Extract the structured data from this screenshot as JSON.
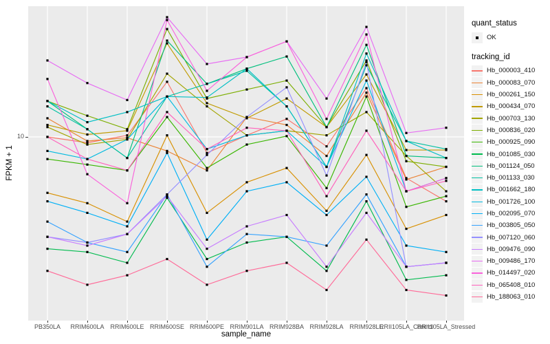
{
  "figure": {
    "background": "#FFFFFF",
    "panel_background": "#EBEBEB",
    "gridline_color": "#FFFFFF",
    "axis_text_color": "#4D4D4D",
    "marker_color": "#000000"
  },
  "chart_data": {
    "type": "line",
    "title": "",
    "xlabel": "sample_name",
    "ylabel": "FPKM + 1",
    "y_scale": "log10",
    "grid": "major gridlines, white on gray panel",
    "legend_position": "right",
    "y_ticks": [
      {
        "label": "10",
        "value": 10
      }
    ],
    "categories": [
      "PB350LA",
      "RRIM600LA",
      "RRIM600LE",
      "RRIM600SE",
      "RRIM600PE",
      "RRIM901LA",
      "RRIM928BA",
      "RRIM928LA",
      "RRIM928LE",
      "RRII105LA_Control",
      "RRII105LA_Stressed"
    ],
    "legend": {
      "quant_status_title": "quant_status",
      "quant_status_items": [
        {
          "label": "OK",
          "marker": "black-square-point"
        }
      ],
      "tracking_id_title": "tracking_id"
    },
    "marker": "small black square at every sample point (quant_status = OK)",
    "series": [
      {
        "name": "Hb_000003_410",
        "color": "#F8766D",
        "values": [
          10.0,
          9.3,
          10.2,
          19.8,
          8.2,
          10.2,
          12.5,
          8.9,
          18.3,
          6.0,
          4.5
        ]
      },
      {
        "name": "Hb_000083_070",
        "color": "#EB8335",
        "values": [
          12.6,
          9.5,
          9.9,
          8.4,
          6.6,
          12.8,
          11.6,
          7.9,
          17.3,
          5.9,
          6.9
        ]
      },
      {
        "name": "Hb_000261_150",
        "color": "#D89000",
        "values": [
          5.0,
          4.4,
          3.5,
          10.2,
          3.9,
          5.7,
          6.8,
          4.0,
          8.0,
          3.2,
          3.8
        ]
      },
      {
        "name": "Hb_000434_070",
        "color": "#C09B00",
        "values": [
          11.6,
          10.3,
          10.8,
          31.9,
          15.2,
          12.6,
          16.1,
          11.3,
          21.7,
          8.5,
          8.5
        ]
      },
      {
        "name": "Hb_000703_130",
        "color": "#A3A500",
        "values": [
          11.3,
          9.1,
          9.7,
          21.9,
          14.6,
          10.2,
          10.8,
          10.2,
          13.6,
          7.9,
          5.1
        ]
      },
      {
        "name": "Hb_000836_020",
        "color": "#7CAE00",
        "values": [
          15.6,
          13.0,
          11.0,
          38.1,
          16.1,
          18.0,
          20.1,
          11.3,
          25.8,
          7.4,
          6.9
        ]
      },
      {
        "name": "Hb_000925_090",
        "color": "#39B600",
        "values": [
          7.6,
          7.1,
          6.6,
          12.8,
          6.8,
          9.1,
          10.1,
          5.3,
          16.5,
          4.2,
          4.8
        ]
      },
      {
        "name": "Hb_001085_030",
        "color": "#00BB4E",
        "values": [
          2.5,
          2.4,
          2.1,
          4.7,
          2.2,
          2.7,
          2.9,
          1.9,
          4.5,
          1.7,
          1.8
        ]
      },
      {
        "name": "Hb_001124_050",
        "color": "#00BF7D",
        "values": [
          15.6,
          11.0,
          7.7,
          33.0,
          19.3,
          23.3,
          27.1,
          11.3,
          31.3,
          7.9,
          7.7
        ]
      },
      {
        "name": "Hb_001133_030",
        "color": "#00C1A3",
        "values": [
          14.6,
          11.0,
          7.7,
          16.5,
          19.3,
          22.7,
          14.6,
          6.9,
          24.3,
          9.5,
          8.6
        ]
      },
      {
        "name": "Hb_001662_180",
        "color": "#00BFC4",
        "values": [
          15.6,
          12.0,
          13.6,
          16.5,
          16.3,
          23.3,
          14.6,
          6.9,
          28.1,
          9.5,
          7.7
        ]
      },
      {
        "name": "Hb_001726_100",
        "color": "#00BAE0",
        "values": [
          8.4,
          7.6,
          9.7,
          16.5,
          8.6,
          10.2,
          10.8,
          6.9,
          20.1,
          5.1,
          6.0
        ]
      },
      {
        "name": "Hb_002095_070",
        "color": "#00B0F6",
        "values": [
          4.5,
          3.9,
          3.3,
          8.2,
          2.8,
          5.1,
          5.7,
          3.8,
          6.1,
          2.6,
          2.4
        ]
      },
      {
        "name": "Hb_003805_050",
        "color": "#35A2FF",
        "values": [
          3.5,
          2.7,
          2.4,
          4.9,
          2.0,
          3.0,
          2.9,
          2.6,
          4.9,
          2.0,
          2.1
        ]
      },
      {
        "name": "Hb_007120_060",
        "color": "#9590FF",
        "values": [
          2.9,
          2.7,
          3.0,
          4.9,
          8.0,
          12.8,
          18.5,
          6.2,
          25.3,
          2.0,
          2.1
        ]
      },
      {
        "name": "Hb_009476_090",
        "color": "#C77CFF",
        "values": [
          2.9,
          2.6,
          3.0,
          4.8,
          2.5,
          3.3,
          3.8,
          2.0,
          3.9,
          2.0,
          2.1
        ]
      },
      {
        "name": "Hb_009486_170",
        "color": "#E76BF3",
        "values": [
          25.8,
          19.5,
          15.8,
          44.1,
          24.7,
          26.9,
          32.7,
          16.1,
          39.1,
          10.5,
          11.2
        ]
      },
      {
        "name": "Hb_014497_020",
        "color": "#FA62DB",
        "values": [
          20.5,
          6.3,
          4.4,
          42.6,
          17.7,
          26.9,
          32.7,
          12.5,
          35.6,
          5.1,
          6.0
        ]
      },
      {
        "name": "Hb_065408_010",
        "color": "#FF62BC",
        "values": [
          10.0,
          7.6,
          6.6,
          13.6,
          8.6,
          11.2,
          10.8,
          4.8,
          10.8,
          5.1,
          5.8
        ]
      },
      {
        "name": "Hb_188063_010",
        "color": "#FF6A98",
        "values": [
          1.9,
          1.6,
          1.8,
          2.2,
          1.6,
          1.9,
          2.1,
          1.5,
          2.8,
          1.5,
          1.4
        ]
      }
    ]
  }
}
